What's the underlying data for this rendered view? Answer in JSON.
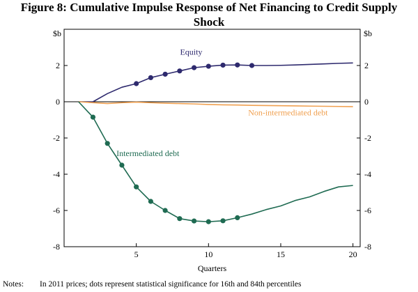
{
  "title_line1": "Figure 8: Cumulative Impulse Response of Net Financing to Credit Supply",
  "title_line2": "Shock",
  "notes_label": "Notes:",
  "notes_text": "In 2011 prices; dots represent statistical significance for 16th and 84th percentiles",
  "colors": {
    "equity": "#2e2a6e",
    "intermediated": "#1f6b52",
    "non_intermediated": "#f0a050",
    "zero_line": "#000000"
  },
  "chart_data": {
    "type": "line",
    "title": "Cumulative Impulse Response of Net Financing to Credit Supply Shock",
    "xlabel": "Quarters",
    "ylabel_left": "$b",
    "ylabel_right": "$b",
    "xlim": [
      0,
      20.5
    ],
    "ylim": [
      -8,
      4
    ],
    "x_ticks": [
      5,
      10,
      15,
      20
    ],
    "y_ticks": [
      -8,
      -6,
      -4,
      -2,
      0,
      2
    ],
    "y_tick_labels": [
      "-8",
      "-6",
      "-4",
      "-2",
      "0",
      "2"
    ],
    "series": [
      {
        "name": "Equity",
        "color": "#2e2a6e",
        "x": [
          1,
          2,
          3,
          4,
          5,
          6,
          7,
          8,
          9,
          10,
          11,
          12,
          13,
          14,
          15,
          16,
          17,
          18,
          19,
          20
        ],
        "values": [
          0,
          0,
          0.45,
          0.8,
          1.0,
          1.33,
          1.52,
          1.7,
          1.88,
          1.96,
          2.02,
          2.03,
          2.0,
          2.0,
          2.01,
          2.03,
          2.06,
          2.09,
          2.12,
          2.14
        ],
        "significant": [
          false,
          false,
          false,
          false,
          true,
          true,
          true,
          true,
          true,
          true,
          true,
          true,
          true,
          false,
          false,
          false,
          false,
          false,
          false,
          false
        ],
        "label_x": 8.8,
        "label_y": 2.6
      },
      {
        "name": "Non-intermediated debt",
        "color": "#f0a050",
        "x": [
          1,
          2,
          3,
          4,
          5,
          6,
          7,
          8,
          9,
          10,
          11,
          12,
          13,
          14,
          15,
          16,
          17,
          18,
          19,
          20
        ],
        "values": [
          0,
          -0.05,
          -0.1,
          -0.05,
          -0.02,
          -0.05,
          -0.08,
          -0.1,
          -0.12,
          -0.15,
          -0.17,
          -0.18,
          -0.2,
          -0.21,
          -0.22,
          -0.23,
          -0.24,
          -0.25,
          -0.26,
          -0.27
        ],
        "significant": [
          false,
          false,
          false,
          false,
          false,
          false,
          false,
          false,
          false,
          false,
          false,
          false,
          false,
          false,
          false,
          false,
          false,
          false,
          false,
          false
        ],
        "label_x": 15.5,
        "label_y": -0.75
      },
      {
        "name": "Intermediated debt",
        "color": "#1f6b52",
        "x": [
          1,
          2,
          3,
          4,
          5,
          6,
          7,
          8,
          9,
          10,
          11,
          12,
          13,
          14,
          15,
          16,
          17,
          18,
          19,
          20
        ],
        "values": [
          0,
          -0.85,
          -2.3,
          -3.5,
          -4.7,
          -5.5,
          -6.0,
          -6.45,
          -6.58,
          -6.62,
          -6.57,
          -6.4,
          -6.2,
          -5.95,
          -5.75,
          -5.45,
          -5.25,
          -4.95,
          -4.7,
          -4.62
        ],
        "significant": [
          false,
          true,
          true,
          true,
          true,
          true,
          true,
          true,
          true,
          true,
          true,
          true,
          false,
          false,
          false,
          false,
          false,
          false,
          false,
          false
        ],
        "label_x": 5.8,
        "label_y": -3.0
      }
    ]
  }
}
